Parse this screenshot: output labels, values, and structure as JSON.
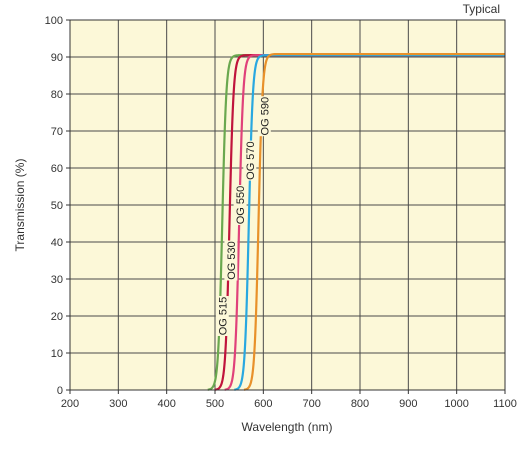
{
  "chart_data": {
    "type": "line",
    "annotation": "Typical",
    "xlabel": "Wavelength (nm)",
    "ylabel": "Transmission (%)",
    "xlim": [
      200,
      1100
    ],
    "ylim": [
      0,
      100
    ],
    "x_ticks": [
      200,
      300,
      400,
      500,
      600,
      700,
      800,
      900,
      1000,
      1100
    ],
    "y_ticks": [
      0,
      10,
      20,
      30,
      40,
      50,
      60,
      70,
      80,
      90,
      100
    ],
    "grid": true,
    "plot_background": "#fcf8d8",
    "series": [
      {
        "name": "OG 515",
        "color": "#6aa84f",
        "cut_on_nm": 515,
        "plateau": 90.5,
        "label_at": [
          515,
          20
        ]
      },
      {
        "name": "OG 530",
        "color": "#c0143c",
        "cut_on_nm": 530,
        "plateau": 90.5,
        "label_at": [
          533,
          35
        ]
      },
      {
        "name": "OG 550",
        "color": "#e0427a",
        "cut_on_nm": 550,
        "plateau": 90.5,
        "label_at": [
          552,
          50
        ]
      },
      {
        "name": "OG 570",
        "color": "#29a8e0",
        "cut_on_nm": 570,
        "plateau": 90.5,
        "label_at": [
          572,
          62
        ]
      },
      {
        "name": "OG 590",
        "color": "#e8912a",
        "cut_on_nm": 590,
        "plateau": 90.8,
        "label_at": [
          602,
          74
        ]
      }
    ]
  }
}
